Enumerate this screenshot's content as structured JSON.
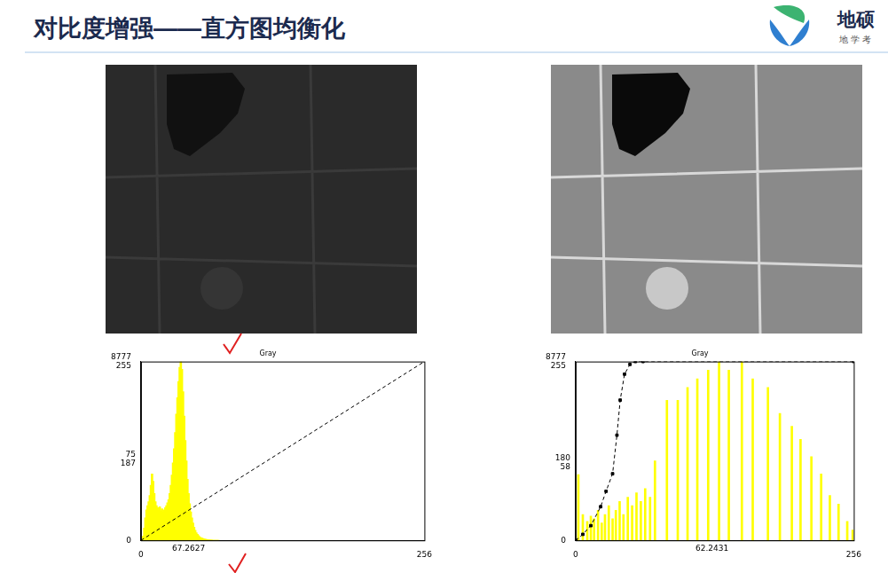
{
  "header": {
    "title": "对比度增强——直方图均衡化",
    "logo": {
      "name": "地硕",
      "tagline": "地 学 考"
    }
  },
  "chart_data": [
    {
      "type": "bar",
      "title": "Gray",
      "color": "#ffff00",
      "grid": false,
      "x": [
        0,
        1,
        2,
        3,
        4,
        5,
        6,
        7,
        8,
        9,
        10,
        11,
        12,
        13,
        14,
        15,
        16,
        17,
        18,
        19,
        20,
        21,
        22,
        23,
        24,
        25,
        26,
        27,
        28,
        29,
        30,
        31,
        32,
        33,
        34,
        35,
        36,
        37,
        38,
        39,
        40,
        41,
        42,
        43,
        44,
        45,
        46,
        47,
        48,
        49,
        50,
        51,
        52,
        53,
        54,
        55,
        56,
        57,
        58,
        59,
        60,
        61,
        62,
        63,
        64,
        65,
        66,
        67,
        68,
        69,
        70
      ],
      "values": [
        0,
        50,
        200,
        600,
        1100,
        1500,
        1700,
        1900,
        2200,
        2700,
        3265,
        2900,
        2300,
        1900,
        1700,
        1600,
        1500,
        1650,
        1450,
        1550,
        1400,
        1500,
        1600,
        1700,
        1850,
        2000,
        2300,
        2700,
        3200,
        3800,
        4500,
        5300,
        6200,
        7000,
        7800,
        8500,
        8777,
        8400,
        7300,
        6100,
        4900,
        3900,
        3000,
        2300,
        1800,
        1400,
        1100,
        850,
        650,
        500,
        380,
        300,
        230,
        180,
        140,
        110,
        90,
        70,
        55,
        45,
        35,
        28,
        22,
        18,
        14,
        10,
        8,
        6,
        4,
        3,
        2
      ],
      "xlim": [
        0,
        256
      ],
      "xticks": [
        0,
        256
      ],
      "ylim": [
        0,
        8777
      ],
      "yticks": [
        0,
        {
          "value": 8777,
          "label": [
            "8777",
            "255"
          ]
        }
      ],
      "y2lim": [
        0,
        255
      ],
      "series": [
        {
          "type": "line",
          "axis": "y2",
          "color": "#000000",
          "line_style": "dashed",
          "marker": "none",
          "x": [
            0,
            256
          ],
          "values": [
            0,
            255
          ]
        }
      ],
      "annotations": [
        {
          "text": "67.2627",
          "x": 43
        },
        {
          "text": [
            "75",
            "187"
          ],
          "y": 3985
        }
      ]
    },
    {
      "type": "bar",
      "title": "Gray",
      "color": "#ffff00",
      "grid": false,
      "x": [
        2.5,
        6.6,
        10.7,
        14,
        17,
        20.6,
        24,
        27,
        30.5,
        34,
        37,
        40.5,
        44,
        48,
        52,
        56,
        60,
        64,
        68.5,
        73,
        84,
        94,
        103,
        112,
        122,
        132,
        141,
        153,
        163,
        177,
        188,
        199,
        207,
        217,
        226,
        234,
        242,
        250,
        255
      ],
      "values": [
        3222,
        1270,
        930,
        1190,
        1060,
        1480,
        850,
        1270,
        1700,
        1060,
        1480,
        1910,
        1270,
        2120,
        1700,
        2330,
        1910,
        2540,
        2120,
        3900,
        6870,
        6870,
        7505,
        7929,
        8353,
        8777,
        8353,
        8777,
        7929,
        7505,
        6233,
        5597,
        4961,
        4113,
        3265,
        2205,
        1781,
        933,
        509
      ],
      "xlim": [
        0,
        256
      ],
      "xticks": [
        0,
        256
      ],
      "ylim": [
        0,
        8777
      ],
      "yticks": [
        0,
        {
          "value": 8777,
          "label": [
            "8777",
            "255"
          ]
        }
      ],
      "y2lim": [
        0,
        255
      ],
      "series": [
        {
          "type": "line",
          "axis": "y2",
          "color": "#000000",
          "line_style": "dashed",
          "marker": "square",
          "x": [
            0,
            6.6,
            14,
            23,
            28,
            34,
            38,
            41,
            45,
            50,
            55,
            62,
            256
          ],
          "values": [
            0,
            8.6,
            21,
            48,
            70,
            95,
            150,
            200,
            237,
            251,
            255,
            255,
            255
          ]
        }
      ],
      "annotations": [
        {
          "text": "62.2431",
          "x": 125.5
        },
        {
          "text": [
            "180",
            "58"
          ],
          "y": 3815
        }
      ]
    }
  ]
}
